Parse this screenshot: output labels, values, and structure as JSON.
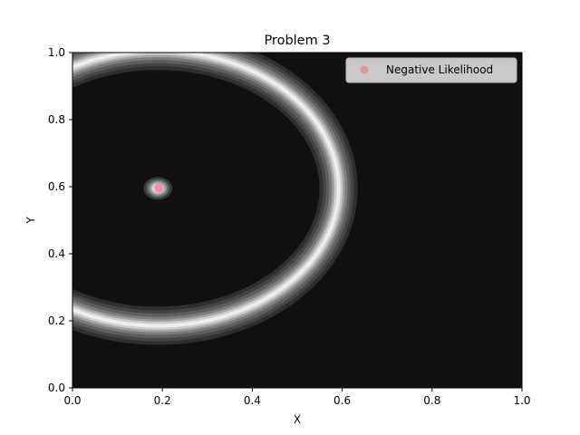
{
  "chart_data": {
    "type": "contour",
    "title": "Problem 3",
    "xlabel": "X",
    "ylabel": "Y",
    "xlim": [
      0,
      1
    ],
    "ylim": [
      0,
      1
    ],
    "xticks": [
      "0.0",
      "0.2",
      "0.4",
      "0.6",
      "0.8",
      "1.0"
    ],
    "yticks": [
      "0.0",
      "0.2",
      "0.4",
      "0.6",
      "0.8",
      "1.0"
    ],
    "grid": false,
    "legend": {
      "position": "top-right",
      "entries": [
        "Negative Likelihood"
      ]
    },
    "background_color": "#111111",
    "marker_color": "#f08080",
    "contours": [
      {
        "shape": "ring",
        "center": [
          0.19,
          0.595
        ],
        "radius_x": 0.402,
        "radius_y": 0.41
      },
      {
        "shape": "blob",
        "center": [
          0.19,
          0.595
        ],
        "radius_x": 0.032,
        "radius_y": 0.034
      }
    ],
    "series": [
      {
        "name": "Negative Likelihood",
        "type": "scatter",
        "x": [
          0.192
        ],
        "y": [
          0.596
        ]
      }
    ]
  }
}
